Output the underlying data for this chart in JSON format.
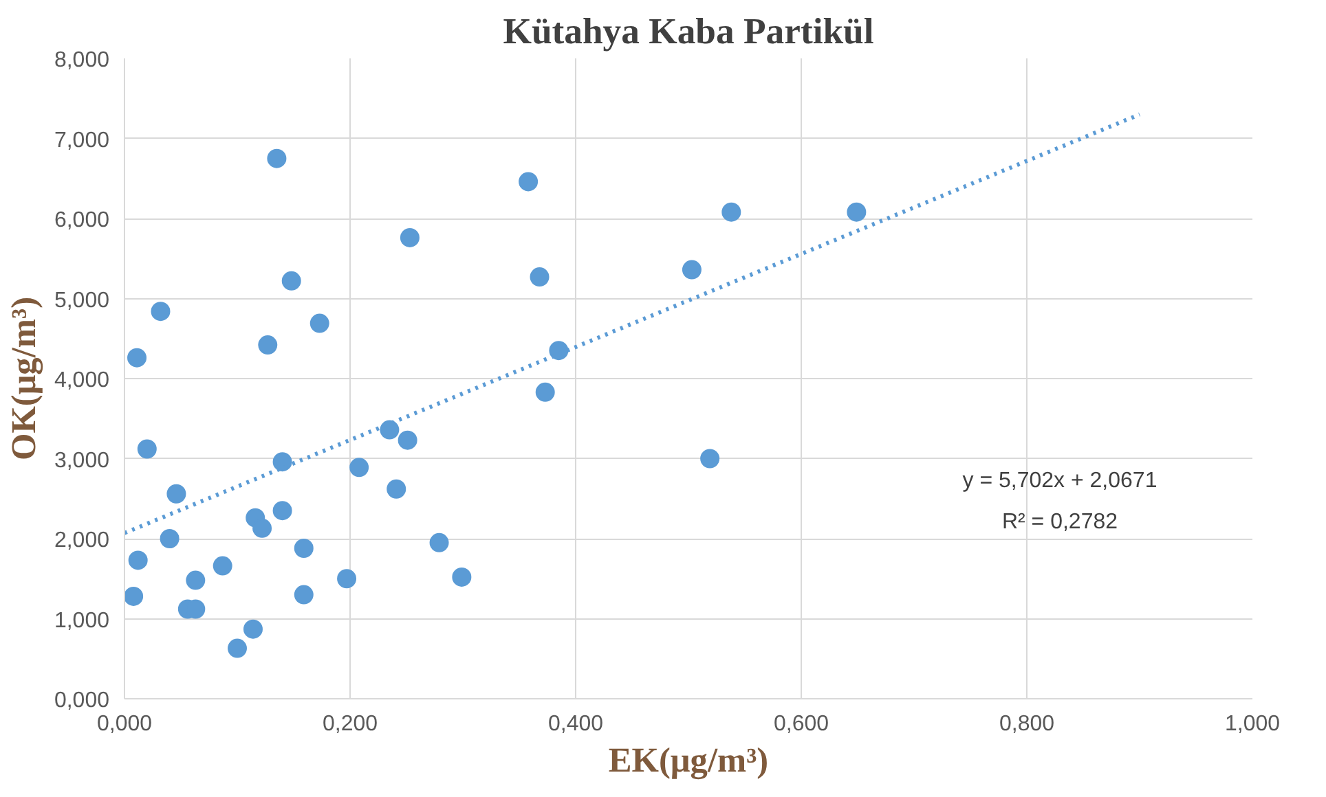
{
  "chart_data": {
    "type": "scatter",
    "title": "Kütahya Kaba Partikül",
    "xlabel": "EK(μg/m³)",
    "ylabel": "OK(μg/m³)",
    "xlim": [
      0,
      1
    ],
    "ylim": [
      0,
      8
    ],
    "xticks": [
      {
        "value": 0,
        "label": "0,000"
      },
      {
        "value": 0.2,
        "label": "0,200"
      },
      {
        "value": 0.4,
        "label": "0,400"
      },
      {
        "value": 0.6,
        "label": "0,600"
      },
      {
        "value": 0.8,
        "label": "0,800"
      },
      {
        "value": 1,
        "label": "1,000"
      }
    ],
    "yticks": [
      {
        "value": 0,
        "label": "0,000"
      },
      {
        "value": 1,
        "label": "1,000"
      },
      {
        "value": 2,
        "label": "2,000"
      },
      {
        "value": 3,
        "label": "3,000"
      },
      {
        "value": 4,
        "label": "4,000"
      },
      {
        "value": 5,
        "label": "5,000"
      },
      {
        "value": 6,
        "label": "6,000"
      },
      {
        "value": 7,
        "label": "7,000"
      },
      {
        "value": 8,
        "label": "8,000"
      }
    ],
    "grid": true,
    "marker": "circle",
    "series": [
      {
        "color": "#5b9bd5",
        "x": [
          0.008,
          0.012,
          0.011,
          0.02,
          0.032,
          0.04,
          0.046,
          0.056,
          0.063,
          0.063,
          0.087,
          0.1,
          0.114,
          0.116,
          0.122,
          0.127,
          0.135,
          0.14,
          0.14,
          0.148,
          0.159,
          0.159,
          0.173,
          0.197,
          0.208,
          0.235,
          0.241,
          0.251,
          0.253,
          0.279,
          0.299,
          0.358,
          0.368,
          0.373,
          0.385,
          0.519,
          0.503,
          0.538,
          0.649
        ],
        "values": [
          1.28,
          1.73,
          4.26,
          3.12,
          4.84,
          2.0,
          2.56,
          1.12,
          1.12,
          1.48,
          1.66,
          0.63,
          0.87,
          2.26,
          2.13,
          4.42,
          6.75,
          2.35,
          2.96,
          5.22,
          1.3,
          1.88,
          4.69,
          1.5,
          2.89,
          3.36,
          2.62,
          3.23,
          5.76,
          1.95,
          1.52,
          6.46,
          5.27,
          3.83,
          4.35,
          3.0,
          5.36,
          6.08,
          6.08
        ]
      },
      {
        "type": "line",
        "color": "#5b9bd5",
        "line_style": "dotted",
        "marker": "none",
        "x": [
          0,
          0.9
        ],
        "values": [
          2.07,
          7.3
        ]
      }
    ],
    "annotations": [
      "y = 5,702x + 2,0671",
      "R² = 0,2782"
    ]
  }
}
